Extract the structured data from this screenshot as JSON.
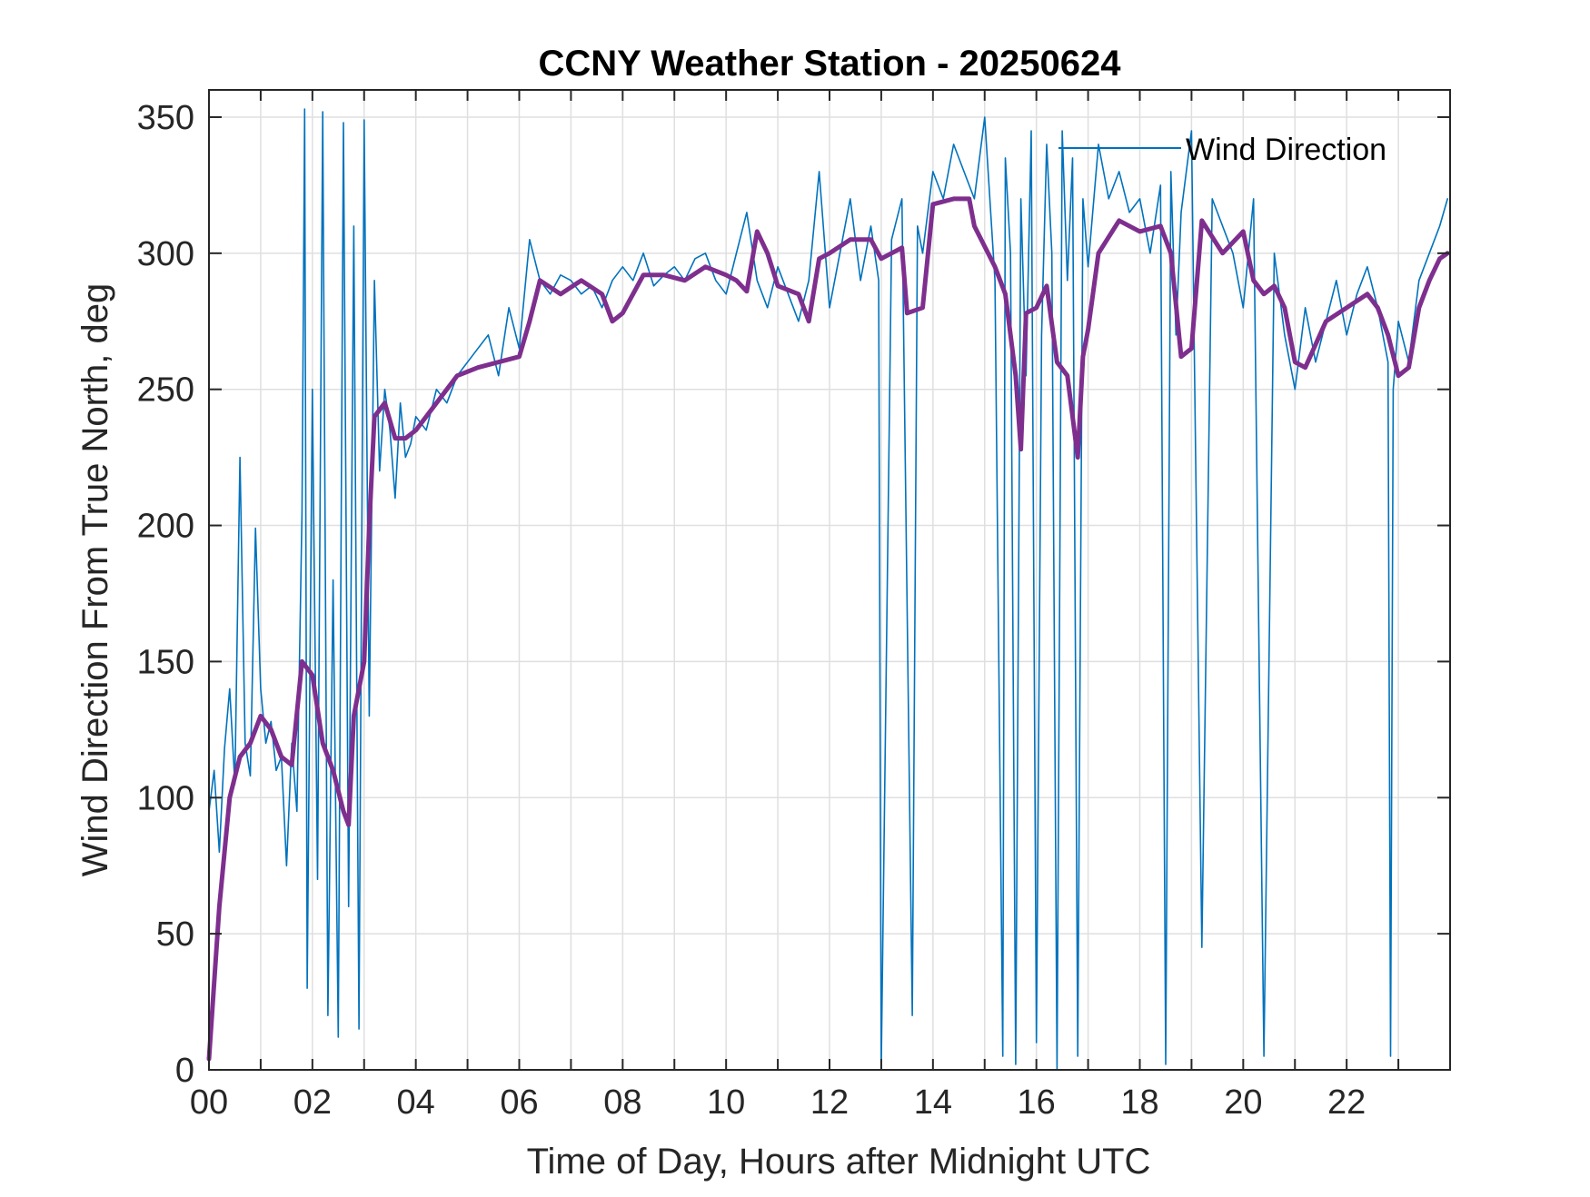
{
  "chart_data": {
    "type": "line",
    "title": "CCNY Weather Station - 20250624",
    "xlabel": "Time of Day, Hours after Midnight UTC",
    "ylabel": "Wind Direction From True North, deg",
    "xlim": [
      0,
      24
    ],
    "ylim": [
      0,
      360
    ],
    "x_ticks": [
      0,
      2,
      4,
      6,
      8,
      10,
      12,
      14,
      16,
      18,
      20,
      22
    ],
    "x_tick_labels": [
      "00",
      "02",
      "04",
      "06",
      "08",
      "10",
      "12",
      "14",
      "16",
      "18",
      "20",
      "22"
    ],
    "y_ticks": [
      0,
      50,
      100,
      150,
      200,
      250,
      300,
      350
    ],
    "y_tick_labels": [
      "0",
      "50",
      "100",
      "150",
      "200",
      "250",
      "300",
      "350"
    ],
    "grid": true,
    "legend": {
      "position": "top-right",
      "entries": [
        "Wind Direction"
      ]
    },
    "series": [
      {
        "name": "Wind Direction",
        "color": "#0072BD",
        "style": "thin-raw",
        "x": [
          0.0,
          0.1,
          0.2,
          0.3,
          0.4,
          0.5,
          0.6,
          0.7,
          0.8,
          0.9,
          1.0,
          1.1,
          1.2,
          1.3,
          1.4,
          1.5,
          1.6,
          1.7,
          1.8,
          1.85,
          1.9,
          2.0,
          2.1,
          2.2,
          2.3,
          2.4,
          2.5,
          2.6,
          2.7,
          2.8,
          2.9,
          3.0,
          3.1,
          3.2,
          3.3,
          3.4,
          3.5,
          3.6,
          3.7,
          3.8,
          3.9,
          4.0,
          4.2,
          4.4,
          4.6,
          4.8,
          5.0,
          5.2,
          5.4,
          5.6,
          5.8,
          6.0,
          6.2,
          6.4,
          6.6,
          6.8,
          7.0,
          7.2,
          7.4,
          7.6,
          7.8,
          8.0,
          8.2,
          8.4,
          8.6,
          8.8,
          9.0,
          9.2,
          9.4,
          9.6,
          9.8,
          10.0,
          10.2,
          10.4,
          10.6,
          10.8,
          11.0,
          11.2,
          11.4,
          11.6,
          11.8,
          12.0,
          12.2,
          12.4,
          12.6,
          12.8,
          12.95,
          13.0,
          13.2,
          13.4,
          13.6,
          13.7,
          13.8,
          14.0,
          14.2,
          14.4,
          14.6,
          14.8,
          15.0,
          15.2,
          15.35,
          15.4,
          15.5,
          15.6,
          15.7,
          15.8,
          15.9,
          16.0,
          16.1,
          16.2,
          16.3,
          16.4,
          16.5,
          16.6,
          16.7,
          16.8,
          16.9,
          17.0,
          17.2,
          17.4,
          17.6,
          17.8,
          18.0,
          18.2,
          18.4,
          18.5,
          18.6,
          18.7,
          18.8,
          19.0,
          19.2,
          19.4,
          19.6,
          19.8,
          20.0,
          20.2,
          20.4,
          20.6,
          20.8,
          21.0,
          21.2,
          21.4,
          21.6,
          21.8,
          22.0,
          22.2,
          22.4,
          22.6,
          22.8,
          22.85,
          22.9,
          23.0,
          23.2,
          23.4,
          23.6,
          23.8,
          23.95
        ],
        "values": [
          95,
          110,
          80,
          118,
          140,
          105,
          225,
          120,
          108,
          199,
          140,
          120,
          128,
          110,
          115,
          75,
          120,
          95,
          205,
          353,
          30,
          250,
          70,
          352,
          20,
          180,
          12,
          348,
          60,
          310,
          15,
          349,
          130,
          290,
          220,
          250,
          235,
          210,
          245,
          225,
          230,
          240,
          235,
          250,
          245,
          255,
          260,
          265,
          270,
          255,
          280,
          265,
          305,
          290,
          285,
          292,
          290,
          285,
          288,
          280,
          290,
          295,
          290,
          300,
          288,
          292,
          295,
          290,
          298,
          300,
          290,
          285,
          300,
          315,
          290,
          280,
          295,
          285,
          275,
          290,
          330,
          280,
          300,
          320,
          290,
          310,
          290,
          0,
          305,
          320,
          20,
          310,
          300,
          330,
          320,
          340,
          330,
          320,
          350,
          290,
          5,
          335,
          300,
          2,
          320,
          255,
          345,
          10,
          270,
          340,
          300,
          0,
          345,
          290,
          335,
          5,
          320,
          295,
          340,
          320,
          330,
          315,
          320,
          300,
          325,
          2,
          330,
          270,
          315,
          345,
          45,
          320,
          310,
          300,
          280,
          320,
          5,
          300,
          270,
          250,
          280,
          260,
          275,
          290,
          270,
          285,
          295,
          280,
          260,
          5,
          250,
          275,
          260,
          290,
          300,
          310,
          320
        ],
        "values_note_omitted": null
      },
      {
        "name": "",
        "color": "#7E2F8E",
        "style": "thick-smoothed",
        "x": [
          0.0,
          0.2,
          0.4,
          0.6,
          0.8,
          1.0,
          1.2,
          1.4,
          1.6,
          1.8,
          2.0,
          2.2,
          2.4,
          2.6,
          2.7,
          2.8,
          3.0,
          3.1,
          3.2,
          3.4,
          3.6,
          3.8,
          4.0,
          4.4,
          4.8,
          5.2,
          5.6,
          6.0,
          6.2,
          6.4,
          6.8,
          7.2,
          7.6,
          7.8,
          8.0,
          8.4,
          8.8,
          9.2,
          9.6,
          10.0,
          10.2,
          10.4,
          10.6,
          10.8,
          11.0,
          11.4,
          11.6,
          11.8,
          12.0,
          12.4,
          12.8,
          13.0,
          13.4,
          13.5,
          13.8,
          14.0,
          14.4,
          14.7,
          14.8,
          15.2,
          15.4,
          15.6,
          15.7,
          15.8,
          16.0,
          16.2,
          16.4,
          16.6,
          16.8,
          16.9,
          17.0,
          17.2,
          17.6,
          18.0,
          18.4,
          18.6,
          18.8,
          19.0,
          19.2,
          19.6,
          20.0,
          20.2,
          20.4,
          20.6,
          20.8,
          21.0,
          21.2,
          21.6,
          22.0,
          22.4,
          22.6,
          22.8,
          23.0,
          23.2,
          23.4,
          23.6,
          23.8,
          23.95
        ],
        "values": [
          4,
          60,
          100,
          115,
          120,
          130,
          125,
          115,
          112,
          150,
          145,
          120,
          110,
          95,
          90,
          130,
          150,
          200,
          240,
          245,
          232,
          232,
          235,
          245,
          255,
          258,
          260,
          262,
          275,
          290,
          285,
          290,
          285,
          275,
          278,
          292,
          292,
          290,
          295,
          292,
          290,
          286,
          308,
          300,
          288,
          285,
          275,
          298,
          300,
          305,
          305,
          298,
          302,
          278,
          280,
          318,
          320,
          320,
          310,
          295,
          285,
          255,
          228,
          278,
          280,
          288,
          260,
          255,
          225,
          262,
          272,
          300,
          312,
          308,
          310,
          300,
          262,
          265,
          312,
          300,
          308,
          290,
          285,
          288,
          280,
          260,
          258,
          275,
          280,
          285,
          280,
          270,
          255,
          258,
          280,
          290,
          298,
          300
        ]
      }
    ]
  }
}
